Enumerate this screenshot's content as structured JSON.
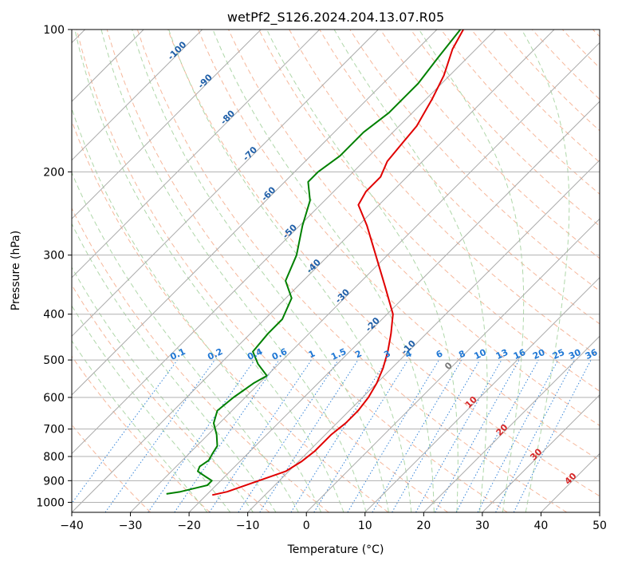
{
  "chart_data": {
    "type": "line",
    "title": "wetPf2_S126.2024.204.13.07.R05",
    "xlabel": "Temperature (°C)",
    "ylabel": "Pressure (hPa)",
    "xlim": [
      -40,
      50
    ],
    "ylim": [
      1050,
      100
    ],
    "y_scale": "log",
    "skew": true,
    "grid": true,
    "x_ticks": [
      -40,
      -30,
      -20,
      -10,
      0,
      10,
      20,
      30,
      40,
      50
    ],
    "y_ticks": [
      100,
      200,
      300,
      400,
      500,
      600,
      700,
      800,
      900,
      1000
    ],
    "background_lines": {
      "isotherms_color": "#aaaaaa",
      "dry_adiabats_color": "#f4a582",
      "moist_adiabats_color": "#a6d3a0",
      "mixing_ratio_color": "#1f77d4",
      "mixing_ratio_labels": [
        "0.1",
        "0.2",
        "0.4",
        "0.6",
        "1",
        "1.5",
        "2",
        "3",
        "4",
        "6",
        "8",
        "10",
        "13",
        "16",
        "20",
        "25",
        "30",
        "36"
      ],
      "isotherm_labels_blue": [
        "-100",
        "-90",
        "-80",
        "-70",
        "-60",
        "-50",
        "-40",
        "-30",
        "-20",
        "-10"
      ],
      "isotherm_label_gray": "0",
      "isotherm_labels_red": [
        "10",
        "20",
        "30",
        "40"
      ]
    },
    "series": [
      {
        "color": "#e00000",
        "points": [
          {
            "p": 965,
            "t": -19.0
          },
          {
            "p": 950,
            "t": -17.0
          },
          {
            "p": 900,
            "t": -13.5
          },
          {
            "p": 860,
            "t": -10.5
          },
          {
            "p": 820,
            "t": -9.5
          },
          {
            "p": 780,
            "t": -9.0
          },
          {
            "p": 720,
            "t": -9.0
          },
          {
            "p": 680,
            "t": -8.5
          },
          {
            "p": 640,
            "t": -8.5
          },
          {
            "p": 600,
            "t": -9.0
          },
          {
            "p": 560,
            "t": -10.0
          },
          {
            "p": 520,
            "t": -11.5
          },
          {
            "p": 480,
            "t": -13.5
          },
          {
            "p": 440,
            "t": -16.0
          },
          {
            "p": 400,
            "t": -19.0
          },
          {
            "p": 350,
            "t": -25.0
          },
          {
            "p": 300,
            "t": -32.0
          },
          {
            "p": 260,
            "t": -38.5
          },
          {
            "p": 235,
            "t": -43.5
          },
          {
            "p": 220,
            "t": -44.5
          },
          {
            "p": 205,
            "t": -44.5
          },
          {
            "p": 190,
            "t": -46.0
          },
          {
            "p": 175,
            "t": -46.5
          },
          {
            "p": 160,
            "t": -47.0
          },
          {
            "p": 140,
            "t": -49.0
          },
          {
            "p": 125,
            "t": -51.0
          },
          {
            "p": 110,
            "t": -54.0
          },
          {
            "p": 100,
            "t": -55.5
          }
        ]
      },
      {
        "color": "#008000",
        "points": [
          {
            "p": 960,
            "t": -27.0
          },
          {
            "p": 950,
            "t": -25.0
          },
          {
            "p": 920,
            "t": -21.5
          },
          {
            "p": 900,
            "t": -21.5
          },
          {
            "p": 880,
            "t": -23.5
          },
          {
            "p": 860,
            "t": -25.5
          },
          {
            "p": 840,
            "t": -26.0
          },
          {
            "p": 815,
            "t": -25.5
          },
          {
            "p": 790,
            "t": -26.0
          },
          {
            "p": 760,
            "t": -26.5
          },
          {
            "p": 720,
            "t": -28.5
          },
          {
            "p": 680,
            "t": -31.0
          },
          {
            "p": 640,
            "t": -32.5
          },
          {
            "p": 600,
            "t": -32.0
          },
          {
            "p": 560,
            "t": -31.0
          },
          {
            "p": 540,
            "t": -30.0
          },
          {
            "p": 510,
            "t": -33.5
          },
          {
            "p": 480,
            "t": -36.5
          },
          {
            "p": 440,
            "t": -37.0
          },
          {
            "p": 410,
            "t": -37.0
          },
          {
            "p": 370,
            "t": -39.0
          },
          {
            "p": 340,
            "t": -43.0
          },
          {
            "p": 300,
            "t": -45.5
          },
          {
            "p": 260,
            "t": -49.5
          },
          {
            "p": 230,
            "t": -52.5
          },
          {
            "p": 210,
            "t": -56.0
          },
          {
            "p": 200,
            "t": -56.0
          },
          {
            "p": 185,
            "t": -55.0
          },
          {
            "p": 165,
            "t": -55.0
          },
          {
            "p": 150,
            "t": -54.0
          },
          {
            "p": 130,
            "t": -54.0
          },
          {
            "p": 115,
            "t": -55.0
          },
          {
            "p": 100,
            "t": -56.0
          }
        ]
      }
    ]
  }
}
